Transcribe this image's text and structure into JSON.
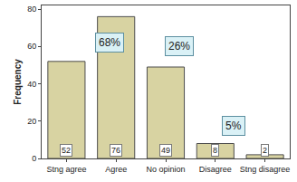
{
  "chart_data": {
    "type": "bar",
    "y_label": "Frequency",
    "categories": [
      "Stng agree",
      "Agree",
      "No opinion",
      "Disagree",
      "Stng disagree"
    ],
    "values": [
      52,
      76,
      49,
      8,
      2
    ],
    "color": "#d8d3a2",
    "ylim": [
      0,
      82
    ],
    "yticks": [
      0,
      20,
      40,
      60,
      80
    ],
    "grid": false,
    "data_labels": true,
    "annotations": [
      "68%",
      "26%",
      "5%"
    ]
  }
}
